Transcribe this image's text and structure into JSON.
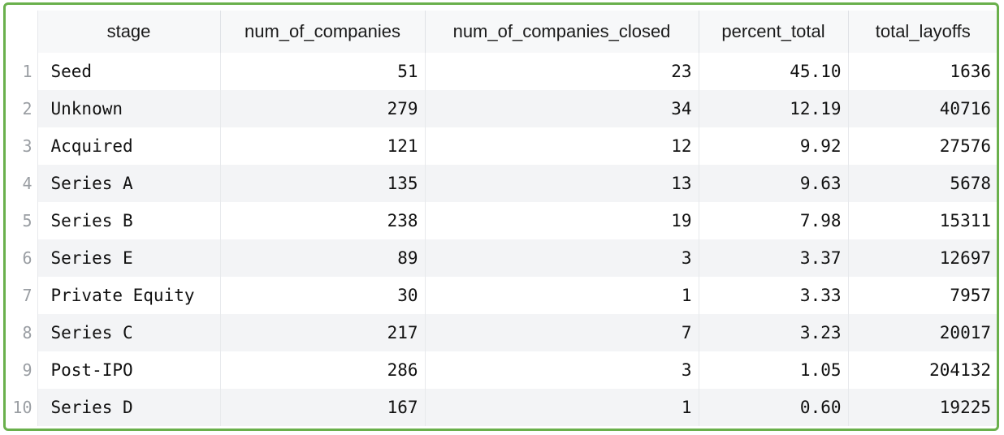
{
  "table": {
    "columns": [
      "stage",
      "num_of_companies",
      "num_of_companies_closed",
      "percent_total",
      "total_layoffs"
    ],
    "rows": [
      {
        "index": "1",
        "stage": "Seed",
        "num_of_companies": "51",
        "num_of_companies_closed": "23",
        "percent_total": "45.10",
        "total_layoffs": "1636"
      },
      {
        "index": "2",
        "stage": "Unknown",
        "num_of_companies": "279",
        "num_of_companies_closed": "34",
        "percent_total": "12.19",
        "total_layoffs": "40716"
      },
      {
        "index": "3",
        "stage": "Acquired",
        "num_of_companies": "121",
        "num_of_companies_closed": "12",
        "percent_total": "9.92",
        "total_layoffs": "27576"
      },
      {
        "index": "4",
        "stage": "Series A",
        "num_of_companies": "135",
        "num_of_companies_closed": "13",
        "percent_total": "9.63",
        "total_layoffs": "5678"
      },
      {
        "index": "5",
        "stage": "Series B",
        "num_of_companies": "238",
        "num_of_companies_closed": "19",
        "percent_total": "7.98",
        "total_layoffs": "15311"
      },
      {
        "index": "6",
        "stage": "Series E",
        "num_of_companies": "89",
        "num_of_companies_closed": "3",
        "percent_total": "3.37",
        "total_layoffs": "12697"
      },
      {
        "index": "7",
        "stage": "Private Equity",
        "num_of_companies": "30",
        "num_of_companies_closed": "1",
        "percent_total": "3.33",
        "total_layoffs": "7957"
      },
      {
        "index": "8",
        "stage": "Series C",
        "num_of_companies": "217",
        "num_of_companies_closed": "7",
        "percent_total": "3.23",
        "total_layoffs": "20017"
      },
      {
        "index": "9",
        "stage": "Post-IPO",
        "num_of_companies": "286",
        "num_of_companies_closed": "3",
        "percent_total": "1.05",
        "total_layoffs": "204132"
      },
      {
        "index": "10",
        "stage": "Series D",
        "num_of_companies": "167",
        "num_of_companies_closed": "1",
        "percent_total": "0.60",
        "total_layoffs": "19225"
      }
    ]
  },
  "colors": {
    "frame_border": "#6ab04c",
    "stripe": "#f3f4f6",
    "header_bg": "#f7f8f9",
    "index_text": "#9a9ea3"
  }
}
